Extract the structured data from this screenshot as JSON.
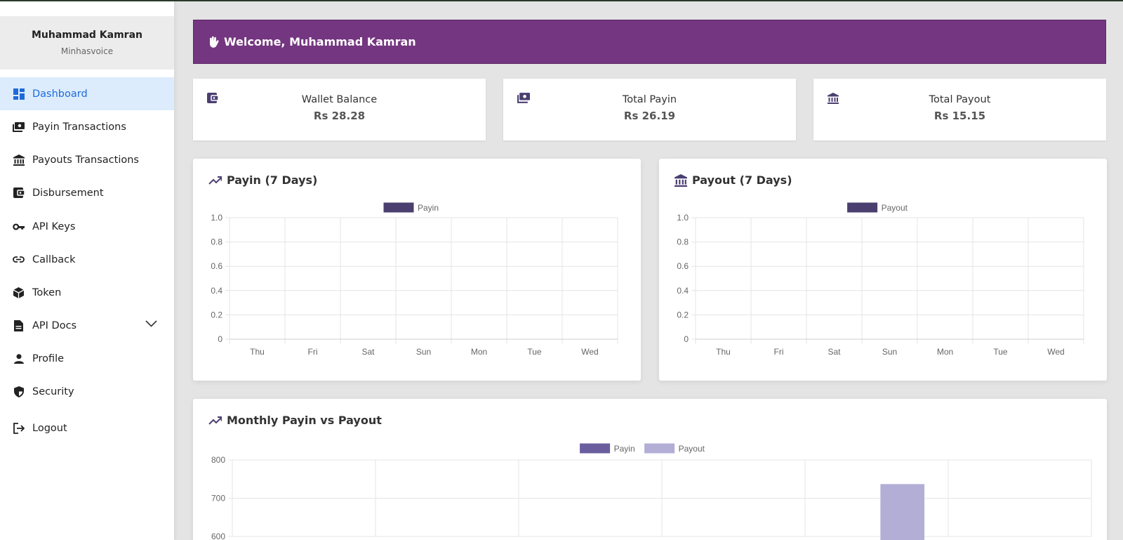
{
  "user": {
    "name": "Muhammad Kamran",
    "subtitle": "Minhasvoice"
  },
  "nav": [
    {
      "label": "Dashboard",
      "icon": "dashboard-icon",
      "active": true
    },
    {
      "label": "Payin Transactions",
      "icon": "money-icon"
    },
    {
      "label": "Payouts Transactions",
      "icon": "bank-icon"
    },
    {
      "label": "Disbursement",
      "icon": "wallet-icon"
    },
    {
      "label": "API Keys",
      "icon": "key-icon"
    },
    {
      "label": "Callback",
      "icon": "link-icon"
    },
    {
      "label": "Token",
      "icon": "cube-icon"
    },
    {
      "label": "API Docs",
      "icon": "document-icon",
      "has_submenu": true
    },
    {
      "label": "Profile",
      "icon": "user-icon"
    },
    {
      "label": "Security",
      "icon": "shield-icon"
    },
    {
      "label": "Logout",
      "icon": "logout-icon"
    }
  ],
  "welcome": {
    "text": "Welcome, Muhammad Kamran",
    "icon": "waving-hand-icon"
  },
  "stats": [
    {
      "label": "Wallet Balance",
      "value": "Rs 28.28",
      "icon": "wallet-icon"
    },
    {
      "label": "Total Payin",
      "value": "Rs 26.19",
      "icon": "money-icon"
    },
    {
      "label": "Total Payout",
      "value": "Rs 15.15",
      "icon": "bank-icon"
    }
  ],
  "cards": {
    "payin": {
      "title": "Payin (7 Days)",
      "icon": "trending-up-icon"
    },
    "payout": {
      "title": "Payout (7 Days)",
      "icon": "bank-icon"
    },
    "monthly": {
      "title": "Monthly Payin vs Payout",
      "icon": "trending-up-icon"
    }
  },
  "colors": {
    "accent": "#743680",
    "active_nav_bg": "#dcecfd",
    "active_nav_text": "#1f6ad8",
    "payin": "#4b3f70",
    "monthly_payin": "#6b5e9e",
    "monthly_payout": "#b2aed6",
    "icon": "#4b3f70"
  },
  "chart_data": [
    {
      "type": "bar",
      "categories": [
        "Thu",
        "Fri",
        "Sat",
        "Sun",
        "Mon",
        "Tue",
        "Wed"
      ],
      "series": [
        {
          "name": "Payin",
          "values": [
            0,
            0,
            0,
            0,
            0,
            0,
            0
          ]
        }
      ],
      "ylim": [
        0,
        1.0
      ],
      "yticks": [
        "1.0",
        "0.8",
        "0.6",
        "0.4",
        "0.2",
        "0"
      ],
      "grid": true,
      "legend": "top-center"
    },
    {
      "type": "bar",
      "categories": [
        "Thu",
        "Fri",
        "Sat",
        "Sun",
        "Mon",
        "Tue",
        "Wed"
      ],
      "series": [
        {
          "name": "Payout",
          "values": [
            0,
            0,
            0,
            0,
            0,
            0,
            0
          ]
        }
      ],
      "ylim": [
        0,
        1.0
      ],
      "yticks": [
        "1.0",
        "0.8",
        "0.6",
        "0.4",
        "0.2",
        "0"
      ],
      "grid": true,
      "legend": "top-center"
    },
    {
      "type": "bar",
      "categories": [
        "",
        "",
        "",
        "",
        "",
        ""
      ],
      "series": [
        {
          "name": "Payin",
          "values": [
            null,
            null,
            null,
            null,
            null,
            null
          ]
        },
        {
          "name": "Payout",
          "values": [
            null,
            null,
            null,
            null,
            736,
            null
          ]
        }
      ],
      "ylim": [
        600,
        800
      ],
      "yticks": [
        "800",
        "700",
        "600"
      ],
      "grid": true,
      "legend": "top-center"
    }
  ]
}
